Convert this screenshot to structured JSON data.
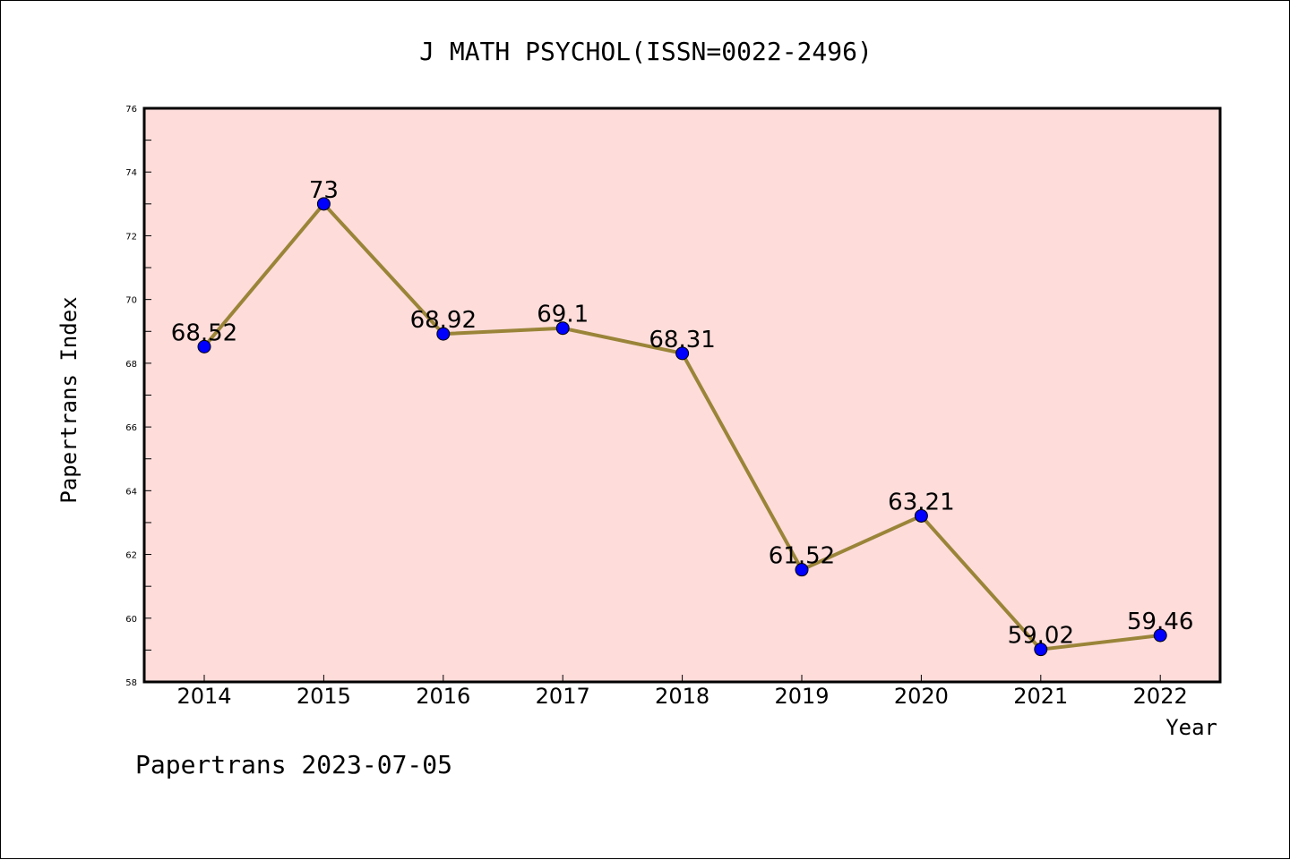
{
  "footer": "Papertrans 2023-07-05",
  "colors": {
    "plot_background": "#FDDCDA",
    "line": "#9A8438",
    "marker": "#0000FF",
    "axis": "#000000"
  },
  "chart_data": {
    "type": "line",
    "title": "J MATH PSYCHOL(ISSN=0022-2496)",
    "xlabel": "Year",
    "ylabel": "Papertrans Index",
    "categories": [
      "2014",
      "2015",
      "2016",
      "2017",
      "2018",
      "2019",
      "2020",
      "2021",
      "2022"
    ],
    "series": [
      {
        "name": "Papertrans Index",
        "values": [
          68.52,
          73,
          68.92,
          69.1,
          68.31,
          61.52,
          63.21,
          59.02,
          59.46
        ],
        "value_labels": [
          "68.52",
          "73",
          "68.92",
          "69.1",
          "68.31",
          "61.52",
          "63.21",
          "59.02",
          "59.46"
        ]
      }
    ],
    "ylim": [
      58,
      76
    ],
    "yticks": [
      58,
      60,
      62,
      64,
      66,
      68,
      70,
      72,
      74,
      76
    ],
    "ytick_labels": [
      "58",
      "60",
      "62",
      "64",
      "66",
      "68",
      "70",
      "72",
      "74",
      "76"
    ],
    "y_minor_step": 1,
    "grid": false,
    "legend": "none"
  }
}
